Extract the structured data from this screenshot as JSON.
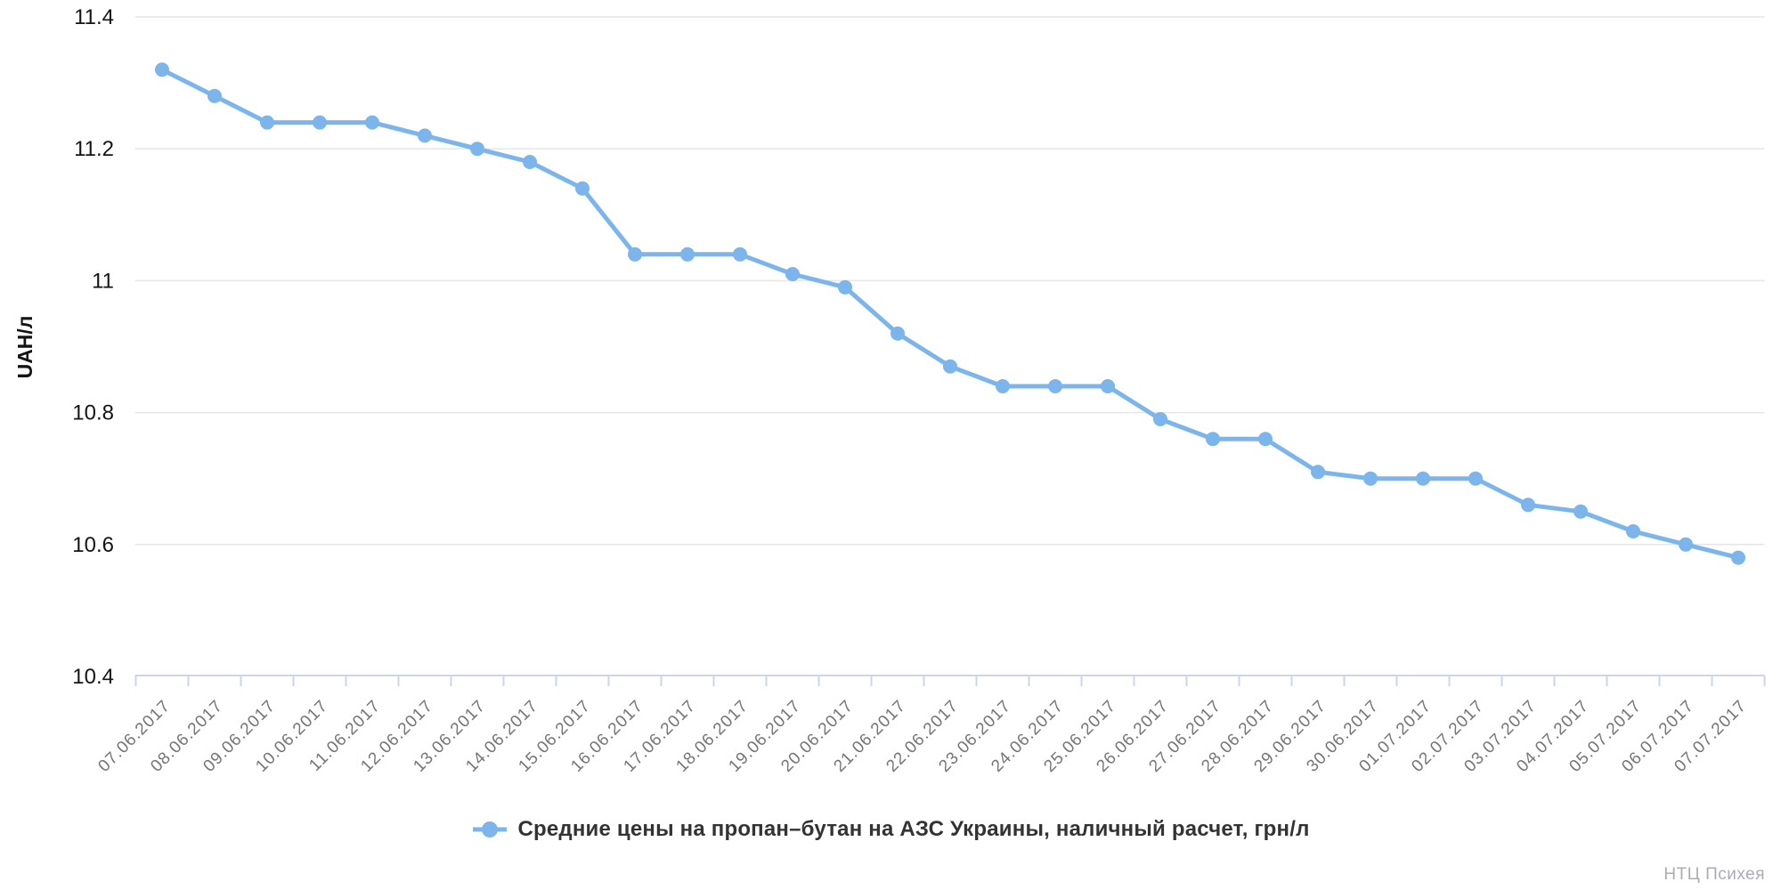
{
  "legend": {
    "label": "Средние цены на пропан–бутан на АЗС Украины, наличный расчет, грн/л"
  },
  "watermark": "НТЦ Психея",
  "colors": {
    "series": "#7cb5ec",
    "gridline": "#e6e6e6",
    "axis_line": "#ccd6eb",
    "y_label_text": "#141414",
    "x_label_text": "#757575",
    "legend_text": "#333333",
    "watermark_text": "#a9adb3",
    "background": "#ffffff"
  },
  "chart_data": {
    "type": "line",
    "title": "",
    "xlabel": "",
    "ylabel": "UAH/л",
    "ylim": [
      10.4,
      11.4
    ],
    "yticks": [
      11.4,
      11.2,
      11,
      10.8,
      10.6,
      10.4
    ],
    "grid": true,
    "legend_position": "bottom",
    "marker": "circle",
    "categories": [
      "07.06.2017",
      "08.06.2017",
      "09.06.2017",
      "10.06.2017",
      "11.06.2017",
      "12.06.2017",
      "13.06.2017",
      "14.06.2017",
      "15.06.2017",
      "16.06.2017",
      "17.06.2017",
      "18.06.2017",
      "19.06.2017",
      "20.06.2017",
      "21.06.2017",
      "22.06.2017",
      "23.06.2017",
      "24.06.2017",
      "25.06.2017",
      "26.06.2017",
      "27.06.2017",
      "28.06.2017",
      "29.06.2017",
      "30.06.2017",
      "01.07.2017",
      "02.07.2017",
      "03.07.2017",
      "04.07.2017",
      "05.07.2017",
      "06.07.2017",
      "07.07.2017"
    ],
    "series": [
      {
        "name": "Средние цены на пропан–бутан на АЗС Украины, наличный расчет, грн/л",
        "values": [
          11.32,
          11.28,
          11.24,
          11.24,
          11.24,
          11.22,
          11.2,
          11.18,
          11.14,
          11.04,
          11.04,
          11.04,
          11.01,
          10.99,
          10.92,
          10.87,
          10.84,
          10.84,
          10.84,
          10.79,
          10.76,
          10.76,
          10.71,
          10.7,
          10.7,
          10.7,
          10.66,
          10.65,
          10.62,
          10.6,
          10.58
        ]
      }
    ]
  }
}
